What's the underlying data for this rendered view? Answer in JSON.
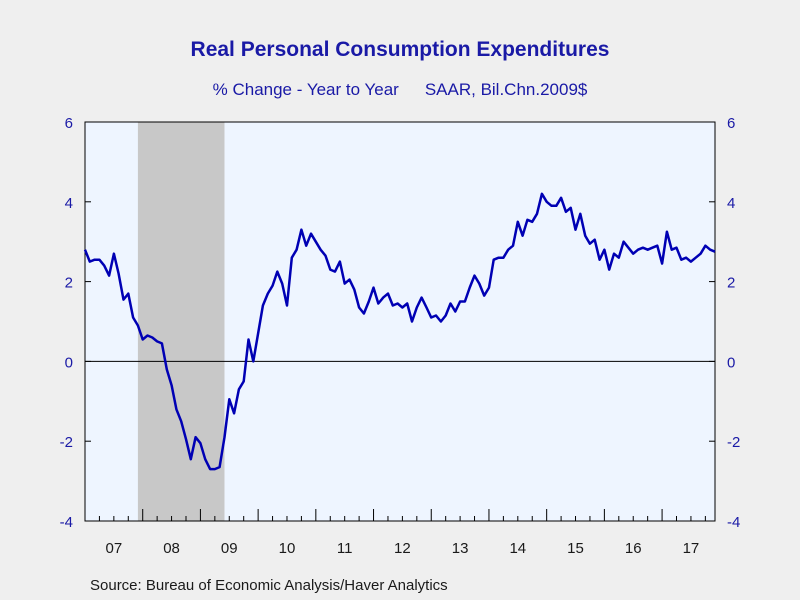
{
  "chart_data": {
    "type": "line",
    "title": "Real Personal Consumption Expenditures",
    "subtitle_left": "% Change - Year to Year",
    "subtitle_right": "SAAR, Bil.Chn.2009$",
    "source": "Source:  Bureau of Economic Analysis/Haver Analytics",
    "xlabel": "",
    "ylabel": "",
    "ylim": [
      -4,
      6
    ],
    "yticks": [
      -4,
      -2,
      0,
      2,
      4,
      6
    ],
    "xlim": [
      2007.0,
      2017.917
    ],
    "x_tick_labels": [
      "07",
      "08",
      "09",
      "10",
      "11",
      "12",
      "13",
      "14",
      "15",
      "16",
      "17"
    ],
    "recession_shading": [
      2007.917,
      2009.417
    ],
    "zero_line": true,
    "grid": false,
    "colors": {
      "line": "#0000b4",
      "recession": "#c8c8c8",
      "plot_bg": "#eef5ff",
      "text": "#1a1aa6"
    },
    "series": [
      {
        "x": [
          2007.0,
          2007.083,
          2007.167,
          2007.25,
          2007.333,
          2007.417,
          2007.5,
          2007.583,
          2007.667,
          2007.75,
          2007.833,
          2007.917,
          2008.0,
          2008.083,
          2008.167,
          2008.25,
          2008.333,
          2008.417,
          2008.5,
          2008.583,
          2008.667,
          2008.75,
          2008.833,
          2008.917,
          2009.0,
          2009.083,
          2009.167,
          2009.25,
          2009.333,
          2009.417,
          2009.5,
          2009.583,
          2009.667,
          2009.75,
          2009.833,
          2009.917,
          2010.0,
          2010.083,
          2010.167,
          2010.25,
          2010.333,
          2010.417,
          2010.5,
          2010.583,
          2010.667,
          2010.75,
          2010.833,
          2010.917,
          2011.0,
          2011.083,
          2011.167,
          2011.25,
          2011.333,
          2011.417,
          2011.5,
          2011.583,
          2011.667,
          2011.75,
          2011.833,
          2011.917,
          2012.0,
          2012.083,
          2012.167,
          2012.25,
          2012.333,
          2012.417,
          2012.5,
          2012.583,
          2012.667,
          2012.75,
          2012.833,
          2012.917,
          2013.0,
          2013.083,
          2013.167,
          2013.25,
          2013.333,
          2013.417,
          2013.5,
          2013.583,
          2013.667,
          2013.75,
          2013.833,
          2013.917,
          2014.0,
          2014.083,
          2014.167,
          2014.25,
          2014.333,
          2014.417,
          2014.5,
          2014.583,
          2014.667,
          2014.75,
          2014.833,
          2014.917,
          2015.0,
          2015.083,
          2015.167,
          2015.25,
          2015.333,
          2015.417,
          2015.5,
          2015.583,
          2015.667,
          2015.75,
          2015.833,
          2015.917,
          2016.0,
          2016.083,
          2016.167,
          2016.25,
          2016.333,
          2016.417,
          2016.5,
          2016.583,
          2016.667,
          2016.75,
          2016.833,
          2016.917,
          2017.0,
          2017.083,
          2017.167,
          2017.25,
          2017.333,
          2017.417,
          2017.5,
          2017.583,
          2017.667,
          2017.75,
          2017.833,
          2017.917
        ],
        "values": [
          2.8,
          2.5,
          2.55,
          2.55,
          2.4,
          2.15,
          2.7,
          2.2,
          1.55,
          1.7,
          1.1,
          0.9,
          0.55,
          0.65,
          0.6,
          0.5,
          0.45,
          -0.2,
          -0.6,
          -1.2,
          -1.5,
          -1.95,
          -2.45,
          -1.9,
          -2.05,
          -2.45,
          -2.7,
          -2.7,
          -2.65,
          -1.9,
          -0.95,
          -1.3,
          -0.7,
          -0.5,
          0.55,
          0.0,
          0.7,
          1.4,
          1.7,
          1.9,
          2.25,
          1.95,
          1.4,
          2.6,
          2.8,
          3.3,
          2.9,
          3.2,
          3.0,
          2.8,
          2.65,
          2.3,
          2.25,
          2.5,
          1.95,
          2.05,
          1.8,
          1.35,
          1.2,
          1.5,
          1.85,
          1.45,
          1.6,
          1.7,
          1.4,
          1.45,
          1.35,
          1.45,
          1.0,
          1.35,
          1.6,
          1.35,
          1.1,
          1.15,
          1.0,
          1.15,
          1.45,
          1.25,
          1.5,
          1.5,
          1.85,
          2.15,
          1.95,
          1.65,
          1.85,
          2.55,
          2.6,
          2.6,
          2.8,
          2.9,
          3.5,
          3.15,
          3.55,
          3.5,
          3.7,
          4.2,
          4.0,
          3.9,
          3.9,
          4.1,
          3.75,
          3.85,
          3.3,
          3.7,
          3.15,
          2.95,
          3.05,
          2.55,
          2.8,
          2.3,
          2.7,
          2.6,
          3.0,
          2.85,
          2.7,
          2.8,
          2.85,
          2.8,
          2.85,
          2.9,
          2.45,
          3.25,
          2.8,
          2.85,
          2.55,
          2.6,
          2.5,
          2.6,
          2.7,
          2.9,
          2.8,
          2.75
        ]
      }
    ]
  }
}
